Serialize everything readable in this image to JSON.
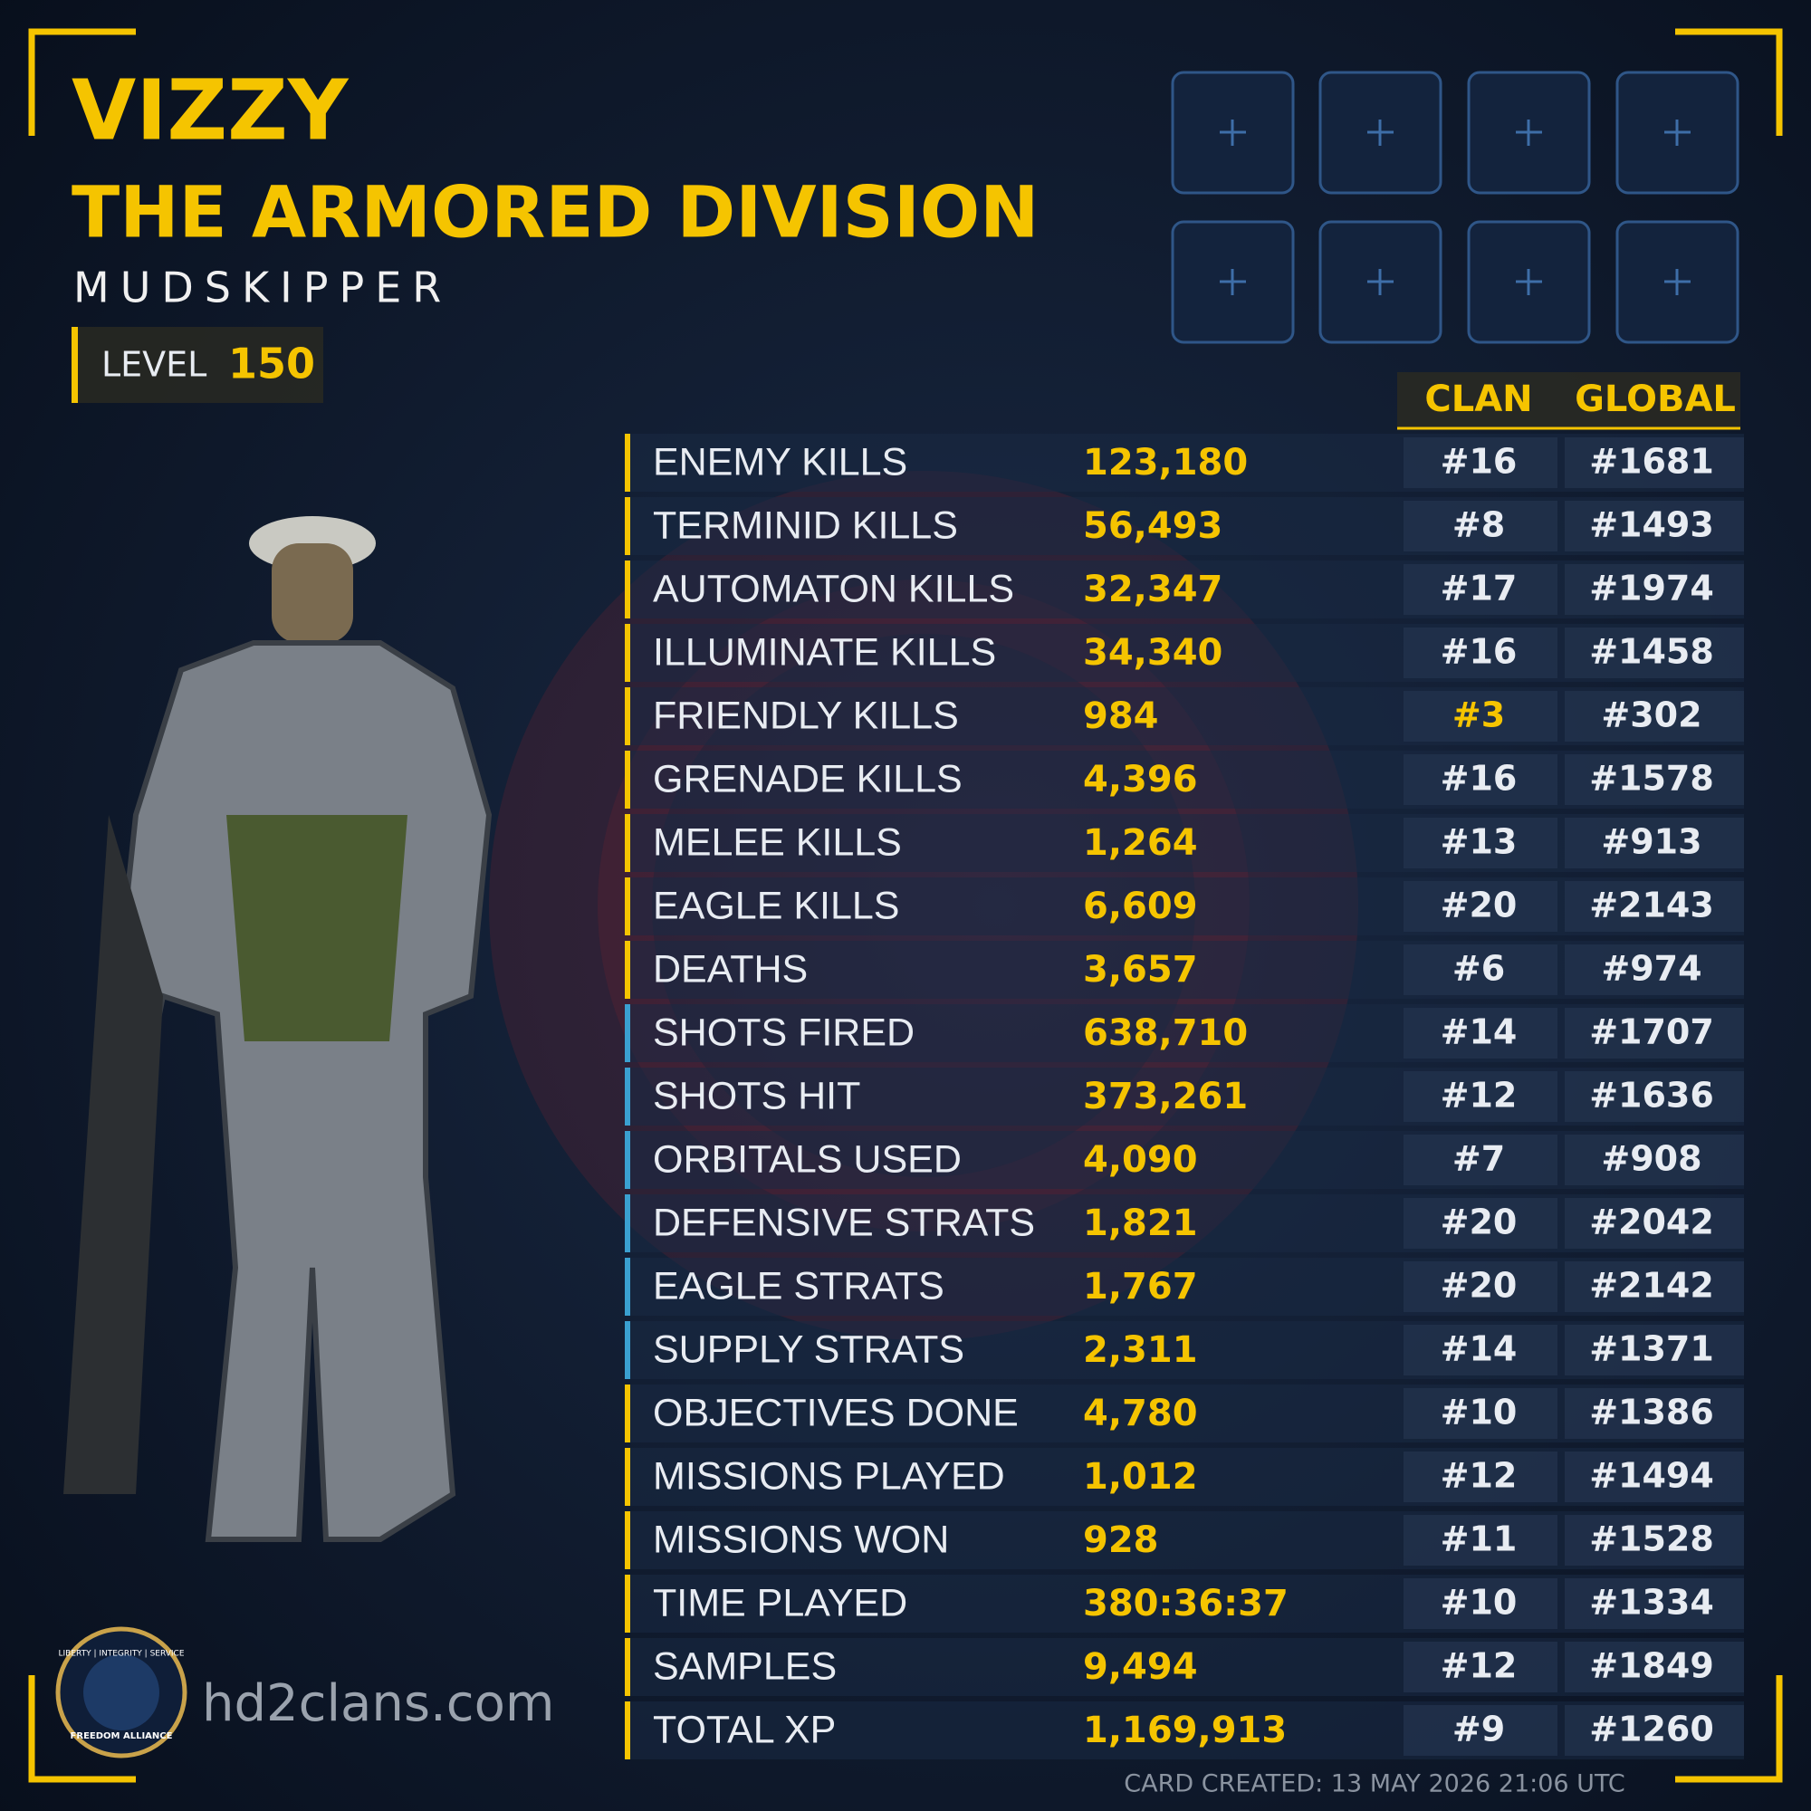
{
  "header": {
    "name": "VIZZY",
    "clan": "THE ARMORED DIVISION",
    "rank": "MUDSKIPPER",
    "level_label": "LEVEL",
    "level": "150"
  },
  "table": {
    "headers": [
      "CLAN",
      "GLOBAL"
    ],
    "rows": [
      {
        "label": "ENEMY KILLS",
        "value": "123,180",
        "clan": "#16",
        "global": "#1681",
        "accent": "#f5c400"
      },
      {
        "label": "TERMINID KILLS",
        "value": "56,493",
        "clan": "#8",
        "global": "#1493",
        "accent": "#f5c400"
      },
      {
        "label": "AUTOMATON KILLS",
        "value": "32,347",
        "clan": "#17",
        "global": "#1974",
        "accent": "#f5c400"
      },
      {
        "label": "ILLUMINATE KILLS",
        "value": "34,340",
        "clan": "#16",
        "global": "#1458",
        "accent": "#f5c400"
      },
      {
        "label": "FRIENDLY KILLS",
        "value": "984",
        "clan": "#3",
        "global": "#302",
        "accent": "#f5c400",
        "clan_color": "#f5c400"
      },
      {
        "label": "GRENADE KILLS",
        "value": "4,396",
        "clan": "#16",
        "global": "#1578",
        "accent": "#f5c400"
      },
      {
        "label": "MELEE KILLS",
        "value": "1,264",
        "clan": "#13",
        "global": "#913",
        "accent": "#f5c400"
      },
      {
        "label": "EAGLE KILLS",
        "value": "6,609",
        "clan": "#20",
        "global": "#2143",
        "accent": "#f5c400"
      },
      {
        "label": "DEATHS",
        "value": "3,657",
        "clan": "#6",
        "global": "#974",
        "accent": "#f5c400"
      },
      {
        "label": "SHOTS FIRED",
        "value": "638,710",
        "clan": "#14",
        "global": "#1707",
        "accent": "#3aa0d0"
      },
      {
        "label": "SHOTS HIT",
        "value": "373,261",
        "clan": "#12",
        "global": "#1636",
        "accent": "#3aa0d0"
      },
      {
        "label": "ORBITALS USED",
        "value": "4,090",
        "clan": "#7",
        "global": "#908",
        "accent": "#3aa0d0"
      },
      {
        "label": "DEFENSIVE STRATS",
        "value": "1,821",
        "clan": "#20",
        "global": "#2042",
        "accent": "#3aa0d0"
      },
      {
        "label": "EAGLE STRATS",
        "value": "1,767",
        "clan": "#20",
        "global": "#2142",
        "accent": "#3aa0d0"
      },
      {
        "label": "SUPPLY STRATS",
        "value": "2,311",
        "clan": "#14",
        "global": "#1371",
        "accent": "#3aa0d0"
      },
      {
        "label": "OBJECTIVES DONE",
        "value": "4,780",
        "clan": "#10",
        "global": "#1386",
        "accent": "#f5c400"
      },
      {
        "label": "MISSIONS PLAYED",
        "value": "1,012",
        "clan": "#12",
        "global": "#1494",
        "accent": "#f5c400"
      },
      {
        "label": "MISSIONS WON",
        "value": "928",
        "clan": "#11",
        "global": "#1528",
        "accent": "#f5c400"
      },
      {
        "label": "TIME PLAYED",
        "value": "380:36:37",
        "clan": "#10",
        "global": "#1334",
        "accent": "#f5c400"
      },
      {
        "label": "SAMPLES",
        "value": "9,494",
        "clan": "#12",
        "global": "#1849",
        "accent": "#f5c400"
      },
      {
        "label": "TOTAL XP",
        "value": "1,169,913",
        "clan": "#9",
        "global": "#1260",
        "accent": "#f5c400"
      }
    ]
  },
  "footer": {
    "site": "hd2clans.com",
    "created": "CARD CREATED: 13 MAY 2026 21:06 UTC",
    "badge_top": "LIBERTY | INTEGRITY | SERVICE",
    "badge_bottom": "FREEDOM ALLIANCE"
  }
}
